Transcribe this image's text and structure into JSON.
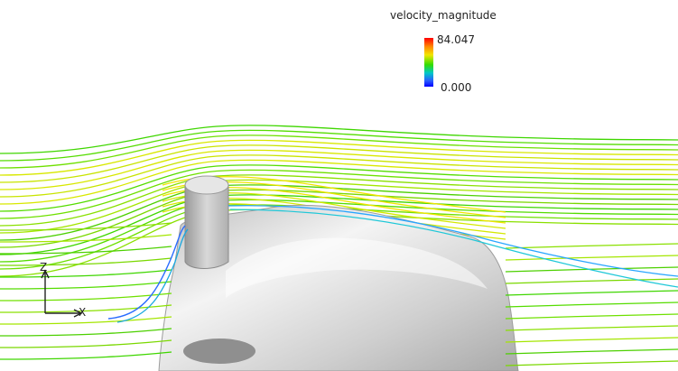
{
  "legend": {
    "title": "velocity_magnitude",
    "max_label": "84.047",
    "min_label": "0.000",
    "colormap": [
      "#0000ff",
      "#2a5cff",
      "#00c8c8",
      "#33dd00",
      "#f2e600",
      "#ff8a00",
      "#ff0000"
    ]
  },
  "axes": {
    "z_label": "Z",
    "x_label": "X"
  },
  "colors": {
    "background": "#ffffff",
    "body_surface": "#d9d9d9"
  }
}
